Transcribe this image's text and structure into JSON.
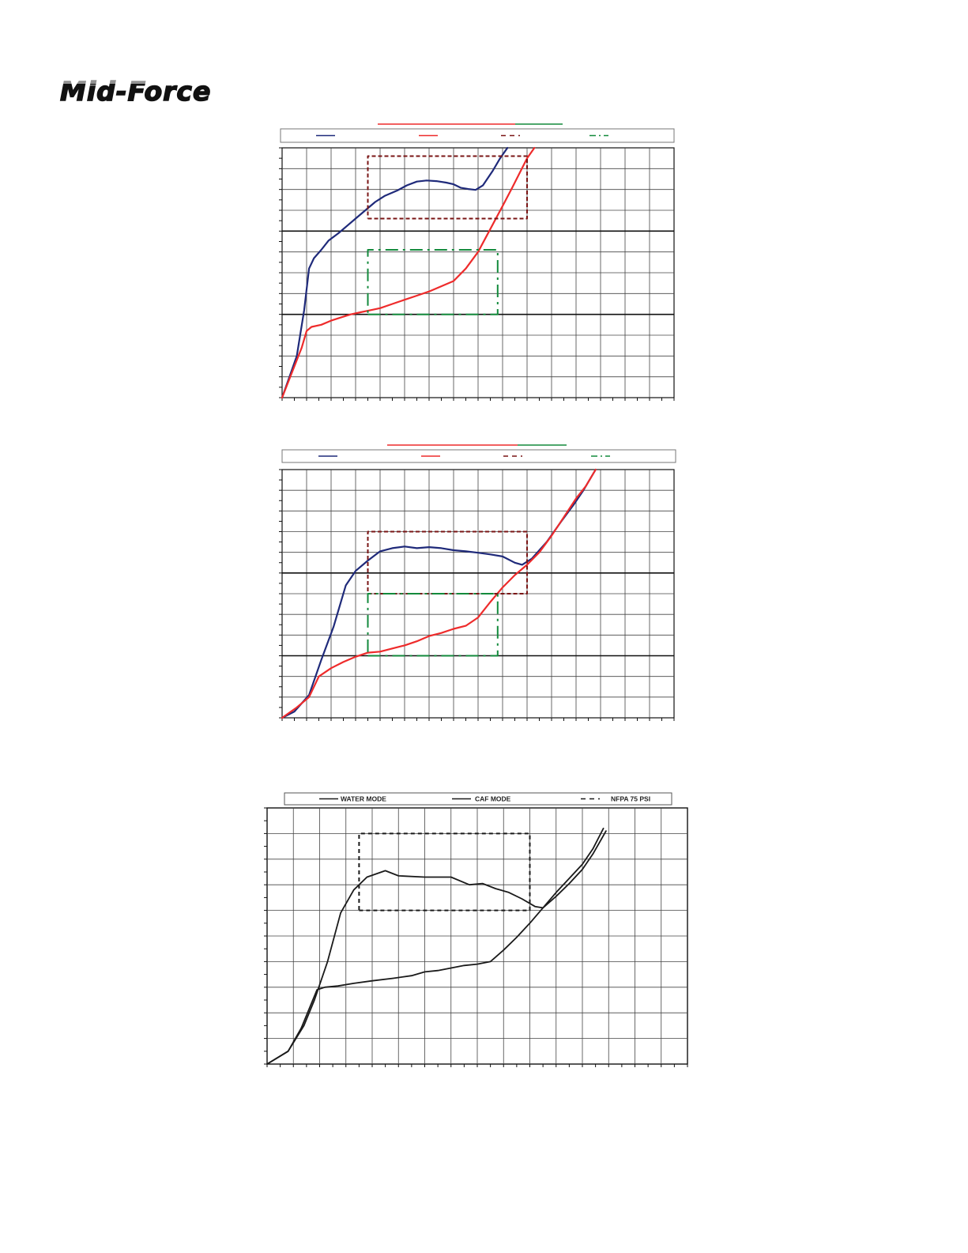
{
  "brand": {
    "logo_text": "Mid-Force"
  },
  "chart_data": [
    {
      "type": "line",
      "grid": true,
      "axis_tick_labels_visible": false,
      "x_divisions": 16,
      "y_divisions": 12,
      "legend": {
        "placement": "top",
        "entries": [
          {
            "name": "",
            "color": "#1f2a7a",
            "style": "solid"
          },
          {
            "name": "",
            "color": "#ee2b2b",
            "style": "solid"
          },
          {
            "name": "",
            "color": "#7a1515",
            "style": "dashed"
          },
          {
            "name": "",
            "color": "#138a3c",
            "style": "dash-dot"
          }
        ]
      },
      "title_underline_colors": [
        "#ee2b2b",
        "#138a3c"
      ],
      "series": [
        {
          "name": "",
          "color": "#1f2a7a",
          "style": "solid",
          "points": [
            [
              0,
              0
            ],
            [
              0.3,
              1.0
            ],
            [
              0.6,
              2.0
            ],
            [
              0.9,
              4.2
            ],
            [
              1.1,
              6.2
            ],
            [
              1.3,
              6.7
            ],
            [
              1.6,
              7.1
            ],
            [
              1.9,
              7.55
            ],
            [
              2.3,
              7.9
            ],
            [
              2.7,
              8.3
            ],
            [
              3.0,
              8.6
            ],
            [
              3.4,
              9.0
            ],
            [
              3.8,
              9.4
            ],
            [
              4.2,
              9.7
            ],
            [
              4.7,
              9.95
            ],
            [
              5.1,
              10.2
            ],
            [
              5.5,
              10.38
            ],
            [
              5.9,
              10.43
            ],
            [
              6.3,
              10.4
            ],
            [
              6.7,
              10.33
            ],
            [
              7.0,
              10.25
            ],
            [
              7.3,
              10.08
            ],
            [
              7.6,
              10.02
            ],
            [
              7.9,
              9.98
            ],
            [
              8.2,
              10.2
            ],
            [
              8.6,
              10.9
            ],
            [
              8.9,
              11.5
            ],
            [
              9.2,
              12.0
            ]
          ]
        },
        {
          "name": "",
          "color": "#ee2b2b",
          "style": "solid",
          "points": [
            [
              0,
              0
            ],
            [
              0.4,
              1.2
            ],
            [
              0.8,
              2.4
            ],
            [
              1.0,
              3.2
            ],
            [
              1.2,
              3.4
            ],
            [
              1.6,
              3.5
            ],
            [
              2.0,
              3.7
            ],
            [
              2.4,
              3.85
            ],
            [
              2.8,
              4.0
            ],
            [
              3.2,
              4.1
            ],
            [
              3.6,
              4.2
            ],
            [
              4.0,
              4.3
            ],
            [
              4.5,
              4.5
            ],
            [
              5.0,
              4.7
            ],
            [
              5.5,
              4.9
            ],
            [
              6.0,
              5.1
            ],
            [
              6.5,
              5.35
            ],
            [
              7.0,
              5.6
            ],
            [
              7.5,
              6.2
            ],
            [
              8.0,
              7.0
            ],
            [
              8.5,
              8.1
            ],
            [
              9.0,
              9.2
            ],
            [
              9.4,
              10.1
            ],
            [
              10.0,
              11.5
            ],
            [
              10.3,
              12.0
            ]
          ]
        },
        {
          "name": "",
          "color": "#7a1515",
          "style": "dashed",
          "points": [
            [
              3.5,
              8.6
            ],
            [
              10.0,
              8.6
            ],
            [
              10.0,
              11.6
            ],
            [
              3.5,
              11.6
            ],
            [
              3.5,
              8.6
            ]
          ]
        },
        {
          "name": "",
          "color": "#138a3c",
          "style": "dash-dot",
          "points": [
            [
              3.5,
              4.0
            ],
            [
              8.8,
              4.0
            ],
            [
              8.8,
              7.1
            ],
            [
              3.5,
              7.1
            ],
            [
              3.5,
              4.0
            ]
          ]
        }
      ]
    },
    {
      "type": "line",
      "grid": true,
      "axis_tick_labels_visible": false,
      "x_divisions": 16,
      "y_divisions": 12,
      "legend": {
        "placement": "top",
        "entries": [
          {
            "name": "",
            "color": "#1f2a7a",
            "style": "solid"
          },
          {
            "name": "",
            "color": "#ee2b2b",
            "style": "solid"
          },
          {
            "name": "",
            "color": "#7a1515",
            "style": "dashed"
          },
          {
            "name": "",
            "color": "#138a3c",
            "style": "dash-dot"
          }
        ]
      },
      "title_underline_colors": [
        "#ee2b2b",
        "#138a3c"
      ],
      "series": [
        {
          "name": "",
          "color": "#1f2a7a",
          "style": "solid",
          "points": [
            [
              0,
              0
            ],
            [
              0.5,
              0.3
            ],
            [
              1.1,
              1.1
            ],
            [
              1.6,
              2.8
            ],
            [
              2.1,
              4.4
            ],
            [
              2.6,
              6.4
            ],
            [
              3.0,
              7.1
            ],
            [
              3.5,
              7.6
            ],
            [
              4.0,
              8.05
            ],
            [
              4.5,
              8.2
            ],
            [
              5.0,
              8.28
            ],
            [
              5.5,
              8.2
            ],
            [
              6.0,
              8.25
            ],
            [
              6.5,
              8.2
            ],
            [
              7.0,
              8.1
            ],
            [
              7.5,
              8.05
            ],
            [
              8.0,
              7.98
            ],
            [
              8.5,
              7.9
            ],
            [
              9.0,
              7.8
            ],
            [
              9.5,
              7.5
            ],
            [
              9.8,
              7.4
            ],
            [
              10.2,
              7.7
            ],
            [
              10.8,
              8.5
            ],
            [
              11.4,
              9.5
            ],
            [
              11.9,
              10.3
            ],
            [
              12.3,
              11.0
            ],
            [
              12.8,
              12.0
            ]
          ]
        },
        {
          "name": "",
          "color": "#ee2b2b",
          "style": "solid",
          "points": [
            [
              0,
              0
            ],
            [
              0.6,
              0.5
            ],
            [
              1.1,
              1.0
            ],
            [
              1.5,
              2.0
            ],
            [
              2.0,
              2.4
            ],
            [
              2.5,
              2.7
            ],
            [
              3.0,
              2.95
            ],
            [
              3.5,
              3.15
            ],
            [
              4.0,
              3.2
            ],
            [
              4.5,
              3.35
            ],
            [
              5.0,
              3.5
            ],
            [
              5.5,
              3.7
            ],
            [
              6.0,
              3.95
            ],
            [
              6.5,
              4.1
            ],
            [
              7.0,
              4.3
            ],
            [
              7.5,
              4.45
            ],
            [
              8.0,
              4.85
            ],
            [
              8.5,
              5.6
            ],
            [
              9.0,
              6.3
            ],
            [
              9.5,
              6.9
            ],
            [
              10.0,
              7.4
            ],
            [
              10.5,
              8.0
            ],
            [
              11.0,
              8.8
            ],
            [
              11.5,
              9.7
            ],
            [
              12.0,
              10.6
            ],
            [
              12.4,
              11.2
            ],
            [
              12.8,
              12.0
            ]
          ]
        },
        {
          "name": "",
          "color": "#7a1515",
          "style": "dashed",
          "points": [
            [
              3.5,
              6.0
            ],
            [
              10.0,
              6.0
            ],
            [
              10.0,
              9.0
            ],
            [
              3.5,
              9.0
            ],
            [
              3.5,
              6.0
            ]
          ]
        },
        {
          "name": "",
          "color": "#138a3c",
          "style": "dash-dot",
          "points": [
            [
              3.5,
              3.0
            ],
            [
              8.8,
              3.0
            ],
            [
              8.8,
              6.0
            ],
            [
              3.5,
              6.0
            ],
            [
              3.5,
              3.0
            ]
          ]
        }
      ]
    },
    {
      "type": "line",
      "grid": true,
      "axis_tick_labels_visible": false,
      "x_divisions": 16,
      "y_divisions": 10,
      "legend": {
        "placement": "top",
        "entries": [
          {
            "name": "WATER MODE",
            "color": "#1a1a1a",
            "style": "solid"
          },
          {
            "name": "CAF MODE",
            "color": "#1a1a1a",
            "style": "solid"
          },
          {
            "name": "NFPA 75 PSI",
            "color": "#1a1a1a",
            "style": "dashed"
          }
        ]
      },
      "series": [
        {
          "name": "WATER MODE",
          "color": "#1a1a1a",
          "style": "solid",
          "points": [
            [
              0,
              0
            ],
            [
              0.8,
              0.5
            ],
            [
              1.4,
              1.5
            ],
            [
              1.8,
              2.5
            ],
            [
              2.3,
              4.0
            ],
            [
              2.8,
              5.9
            ],
            [
              3.3,
              6.8
            ],
            [
              3.8,
              7.3
            ],
            [
              4.5,
              7.55
            ],
            [
              5.0,
              7.35
            ],
            [
              6.0,
              7.3
            ],
            [
              7.0,
              7.3
            ],
            [
              7.7,
              7.0
            ],
            [
              8.2,
              7.05
            ],
            [
              8.7,
              6.85
            ],
            [
              9.2,
              6.7
            ],
            [
              9.7,
              6.45
            ],
            [
              10.2,
              6.15
            ],
            [
              10.5,
              6.1
            ],
            [
              11.0,
              6.55
            ],
            [
              11.5,
              7.05
            ],
            [
              12.0,
              7.6
            ],
            [
              12.4,
              8.2
            ],
            [
              12.9,
              9.1
            ]
          ]
        },
        {
          "name": "CAF MODE",
          "color": "#1a1a1a",
          "style": "solid",
          "points": [
            [
              0,
              0
            ],
            [
              0.8,
              0.5
            ],
            [
              1.3,
              1.4
            ],
            [
              1.9,
              2.9
            ],
            [
              2.2,
              3.0
            ],
            [
              2.7,
              3.05
            ],
            [
              3.3,
              3.15
            ],
            [
              4.0,
              3.25
            ],
            [
              4.8,
              3.35
            ],
            [
              5.5,
              3.45
            ],
            [
              6.0,
              3.6
            ],
            [
              6.5,
              3.65
            ],
            [
              7.0,
              3.75
            ],
            [
              7.5,
              3.85
            ],
            [
              8.0,
              3.9
            ],
            [
              8.5,
              4.0
            ],
            [
              9.0,
              4.45
            ],
            [
              9.5,
              4.95
            ],
            [
              10.0,
              5.5
            ],
            [
              10.5,
              6.1
            ],
            [
              11.0,
              6.7
            ],
            [
              11.5,
              7.25
            ],
            [
              12.0,
              7.8
            ],
            [
              12.4,
              8.4
            ],
            [
              12.8,
              9.2
            ]
          ]
        },
        {
          "name": "NFPA 75 PSI",
          "color": "#1a1a1a",
          "style": "dashed",
          "points": [
            [
              3.5,
              6.0
            ],
            [
              10.0,
              6.0
            ],
            [
              10.0,
              9.0
            ],
            [
              3.5,
              9.0
            ],
            [
              3.5,
              6.0
            ]
          ]
        }
      ]
    }
  ]
}
